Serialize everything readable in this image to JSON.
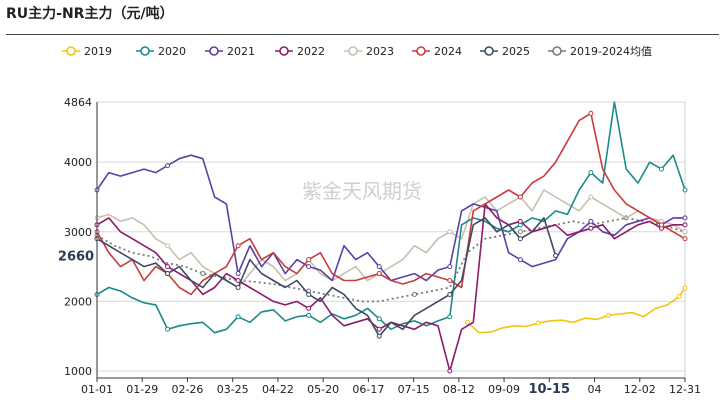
{
  "chart_data": {
    "type": "line",
    "title": "RU主力-NR主力（元/吨）",
    "watermark": "紫金天风期货",
    "yaxis": {
      "min": 900,
      "max": 4864,
      "ticks": [
        1000,
        2000,
        3000,
        4000,
        4864
      ]
    },
    "xaxis": {
      "ticks": [
        "01-01",
        "01-29",
        "02-26",
        "03-25",
        "04-22",
        "05-20",
        "06-17",
        "07-15",
        "08-12",
        "09-09",
        "10-15",
        "04",
        "12-02",
        "12-31"
      ],
      "highlight": "10-15"
    },
    "current_marker": {
      "label": "2660",
      "value": 2660
    },
    "legend_labels": [
      "2019",
      "2020",
      "2021",
      "2022",
      "2023",
      "2024",
      "2025",
      "2019-2024均值"
    ],
    "series": [
      {
        "name": "2019",
        "color": "#f2c40f",
        "style": "solid",
        "x": [
          0.63,
          0.65,
          0.67,
          0.69,
          0.71,
          0.73,
          0.75,
          0.77,
          0.79,
          0.81,
          0.83,
          0.85,
          0.87,
          0.89,
          0.91,
          0.93,
          0.95,
          0.97,
          0.99,
          1.0
        ],
        "values": [
          1700,
          1550,
          1560,
          1620,
          1650,
          1640,
          1690,
          1720,
          1730,
          1700,
          1760,
          1740,
          1800,
          1820,
          1840,
          1780,
          1900,
          1950,
          2070,
          2190
        ]
      },
      {
        "name": "2020",
        "color": "#1a8a8a",
        "style": "solid",
        "x": [
          0.0,
          0.02,
          0.04,
          0.06,
          0.08,
          0.1,
          0.12,
          0.14,
          0.16,
          0.18,
          0.2,
          0.22,
          0.24,
          0.26,
          0.28,
          0.3,
          0.32,
          0.34,
          0.36,
          0.38,
          0.4,
          0.42,
          0.44,
          0.46,
          0.48,
          0.5,
          0.52,
          0.54,
          0.56,
          0.58,
          0.6,
          0.62,
          0.64,
          0.66,
          0.68,
          0.7,
          0.72,
          0.74,
          0.76,
          0.78,
          0.8,
          0.82,
          0.84,
          0.86,
          0.88,
          0.9,
          0.92,
          0.94,
          0.96,
          0.98,
          1.0
        ],
        "values": [
          2100,
          2200,
          2150,
          2050,
          1980,
          1950,
          1600,
          1650,
          1680,
          1700,
          1550,
          1600,
          1780,
          1700,
          1850,
          1880,
          1720,
          1780,
          1800,
          1700,
          1820,
          1750,
          1800,
          1900,
          1750,
          1600,
          1680,
          1720,
          1650,
          1720,
          1780,
          3100,
          3200,
          3150,
          3050,
          3000,
          3100,
          3200,
          3150,
          3300,
          3250,
          3600,
          3850,
          3700,
          4864,
          3900,
          3700,
          4000,
          3900,
          4100,
          3600
        ]
      },
      {
        "name": "2021",
        "color": "#5c3fa6",
        "style": "solid",
        "x": [
          0.0,
          0.02,
          0.04,
          0.06,
          0.08,
          0.1,
          0.12,
          0.14,
          0.16,
          0.18,
          0.2,
          0.22,
          0.24,
          0.26,
          0.28,
          0.3,
          0.32,
          0.34,
          0.36,
          0.38,
          0.4,
          0.42,
          0.44,
          0.46,
          0.48,
          0.5,
          0.52,
          0.54,
          0.56,
          0.58,
          0.6,
          0.62,
          0.64,
          0.66,
          0.68,
          0.7,
          0.72,
          0.74,
          0.76,
          0.78,
          0.8,
          0.82,
          0.84,
          0.86,
          0.88,
          0.9,
          0.92,
          0.94,
          0.96,
          0.98,
          1.0
        ],
        "values": [
          3600,
          3850,
          3800,
          3850,
          3900,
          3850,
          3950,
          4050,
          4100,
          4050,
          3500,
          3400,
          2400,
          2800,
          2500,
          2700,
          2400,
          2600,
          2500,
          2450,
          2300,
          2800,
          2600,
          2700,
          2500,
          2300,
          2350,
          2400,
          2300,
          2450,
          2500,
          3300,
          3400,
          3350,
          3300,
          2700,
          2600,
          2500,
          2550,
          2600,
          2900,
          3000,
          3150,
          3000,
          2950,
          3100,
          3150,
          3200,
          3100,
          3200,
          3200
        ]
      },
      {
        "name": "2022",
        "color": "#8c1b6b",
        "style": "solid",
        "x": [
          0.0,
          0.02,
          0.04,
          0.06,
          0.08,
          0.1,
          0.12,
          0.14,
          0.16,
          0.18,
          0.2,
          0.22,
          0.24,
          0.26,
          0.28,
          0.3,
          0.32,
          0.34,
          0.36,
          0.38,
          0.4,
          0.42,
          0.44,
          0.46,
          0.48,
          0.5,
          0.52,
          0.54,
          0.56,
          0.58,
          0.6,
          0.62,
          0.64,
          0.66,
          0.68,
          0.7,
          0.72,
          0.74,
          0.76,
          0.78,
          0.8,
          0.82,
          0.84,
          0.86,
          0.88,
          0.9,
          0.92,
          0.94,
          0.96,
          0.98,
          1.0
        ],
        "values": [
          3100,
          3200,
          3000,
          2900,
          2800,
          2700,
          2500,
          2400,
          2300,
          2100,
          2200,
          2400,
          2300,
          2200,
          2100,
          2000,
          1950,
          2000,
          1900,
          2050,
          1800,
          1650,
          1700,
          1750,
          1600,
          1700,
          1650,
          1600,
          1700,
          1650,
          1000,
          1600,
          1700,
          3400,
          3200,
          3100,
          3150,
          3000,
          3050,
          3100,
          2950,
          3000,
          3050,
          3100,
          2900,
          3000,
          3100,
          3150,
          3050,
          3100,
          3100
        ]
      },
      {
        "name": "2023",
        "color": "#c9bfae",
        "style": "solid",
        "x": [
          0.0,
          0.02,
          0.04,
          0.06,
          0.08,
          0.1,
          0.12,
          0.14,
          0.16,
          0.18,
          0.2,
          0.22,
          0.24,
          0.26,
          0.28,
          0.3,
          0.32,
          0.34,
          0.36,
          0.38,
          0.4,
          0.42,
          0.44,
          0.46,
          0.48,
          0.5,
          0.52,
          0.54,
          0.56,
          0.58,
          0.6,
          0.62,
          0.64,
          0.66,
          0.68,
          0.7,
          0.72,
          0.74,
          0.76,
          0.78,
          0.8,
          0.82,
          0.84,
          0.86,
          0.88,
          0.9,
          0.92,
          0.94,
          0.96,
          0.98,
          1.0
        ],
        "values": [
          3200,
          3250,
          3150,
          3200,
          3100,
          2900,
          2800,
          2600,
          2700,
          2500,
          2400,
          2300,
          2200,
          2400,
          2600,
          2500,
          2300,
          2400,
          2600,
          2400,
          2300,
          2400,
          2500,
          2300,
          2400,
          2500,
          2600,
          2800,
          2700,
          2900,
          3000,
          2900,
          3400,
          3500,
          3300,
          3400,
          3500,
          3300,
          3600,
          3500,
          3400,
          3300,
          3500,
          3400,
          3300,
          3200,
          3300,
          3200,
          3150,
          3100,
          3000
        ]
      },
      {
        "name": "2024",
        "color": "#c83c3c",
        "style": "solid",
        "x": [
          0.0,
          0.02,
          0.04,
          0.06,
          0.08,
          0.1,
          0.12,
          0.14,
          0.16,
          0.18,
          0.2,
          0.22,
          0.24,
          0.26,
          0.28,
          0.3,
          0.32,
          0.34,
          0.36,
          0.38,
          0.4,
          0.42,
          0.44,
          0.46,
          0.48,
          0.5,
          0.52,
          0.54,
          0.56,
          0.58,
          0.6,
          0.62,
          0.64,
          0.66,
          0.68,
          0.7,
          0.72,
          0.74,
          0.76,
          0.78,
          0.8,
          0.82,
          0.84,
          0.86,
          0.88,
          0.9,
          0.92,
          0.94,
          0.96,
          0.98,
          1.0
        ],
        "values": [
          3000,
          2700,
          2500,
          2600,
          2300,
          2500,
          2400,
          2200,
          2100,
          2300,
          2400,
          2500,
          2800,
          2900,
          2600,
          2700,
          2500,
          2400,
          2600,
          2700,
          2400,
          2300,
          2300,
          2350,
          2400,
          2300,
          2250,
          2300,
          2400,
          2350,
          2300,
          2200,
          3300,
          3400,
          3500,
          3600,
          3500,
          3700,
          3800,
          4000,
          4300,
          4600,
          4700,
          3900,
          3600,
          3400,
          3300,
          3200,
          3100,
          3000,
          2900
        ]
      },
      {
        "name": "2025",
        "color": "#3d4a63",
        "style": "solid",
        "x": [
          0.0,
          0.02,
          0.04,
          0.06,
          0.08,
          0.1,
          0.12,
          0.14,
          0.16,
          0.18,
          0.2,
          0.22,
          0.24,
          0.26,
          0.28,
          0.3,
          0.32,
          0.34,
          0.36,
          0.38,
          0.4,
          0.42,
          0.44,
          0.46,
          0.48,
          0.5,
          0.52,
          0.54,
          0.56,
          0.58,
          0.6,
          0.62,
          0.64,
          0.66,
          0.68,
          0.7,
          0.72,
          0.74,
          0.76,
          0.78
        ],
        "values": [
          2900,
          2800,
          2700,
          2600,
          2500,
          2550,
          2400,
          2500,
          2300,
          2200,
          2400,
          2300,
          2200,
          2600,
          2400,
          2300,
          2200,
          2300,
          2100,
          2000,
          2200,
          2100,
          1900,
          1800,
          1500,
          1700,
          1600,
          1800,
          1900,
          2000,
          2100,
          2300,
          3100,
          3200,
          3000,
          3100,
          2900,
          3000,
          3200,
          2660
        ]
      },
      {
        "name": "2019-2024均值",
        "color": "#7a7a7a",
        "style": "dotted",
        "x": [
          0.0,
          0.03,
          0.06,
          0.09,
          0.12,
          0.15,
          0.18,
          0.21,
          0.24,
          0.27,
          0.3,
          0.33,
          0.36,
          0.39,
          0.42,
          0.45,
          0.48,
          0.51,
          0.54,
          0.57,
          0.6,
          0.63,
          0.66,
          0.69,
          0.72,
          0.75,
          0.78,
          0.81,
          0.84,
          0.87,
          0.9,
          0.93,
          0.96,
          1.0
        ],
        "values": [
          2950,
          2800,
          2700,
          2650,
          2550,
          2500,
          2400,
          2350,
          2300,
          2280,
          2250,
          2200,
          2150,
          2100,
          2050,
          2000,
          2000,
          2050,
          2100,
          2150,
          2200,
          2700,
          2900,
          2950,
          3000,
          3050,
          3100,
          3150,
          3100,
          3150,
          3200,
          3150,
          3100,
          3000
        ]
      }
    ]
  }
}
